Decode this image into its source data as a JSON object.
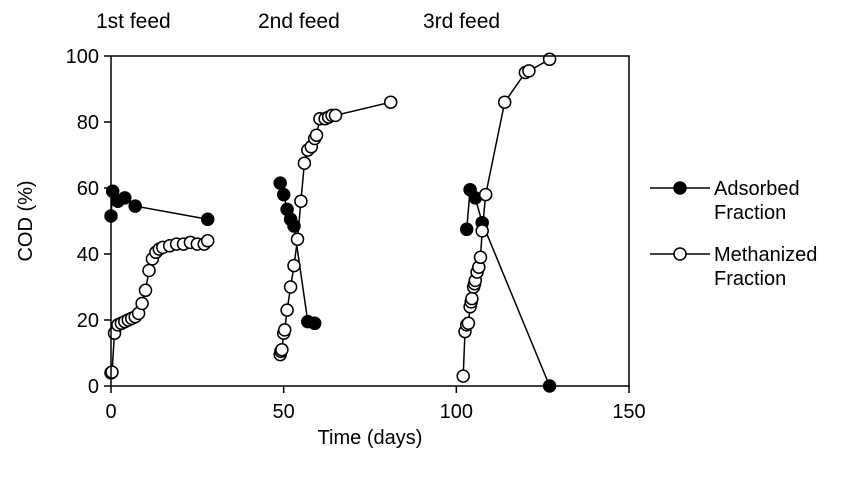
{
  "chart_data": {
    "type": "scatter",
    "xlabel": "Time (days)",
    "ylabel": "COD (%)",
    "xlim": [
      0,
      150
    ],
    "ylim": [
      0,
      100
    ],
    "x_ticks": [
      "0",
      "50",
      "100",
      "150"
    ],
    "y_ticks": [
      "0",
      "20",
      "40",
      "60",
      "80",
      "100"
    ],
    "grid": false,
    "legend_position": "right",
    "annotations": [
      "1st feed",
      "2nd feed",
      "3rd feed"
    ],
    "series": [
      {
        "name": "Adsorbed Fraction",
        "marker": "filled-circle",
        "segments": [
          [
            [
              0,
              51.5
            ],
            [
              0.5,
              59
            ],
            [
              2,
              56
            ],
            [
              4,
              57
            ],
            [
              7,
              54.5
            ],
            [
              28,
              50.5
            ]
          ],
          [
            [
              49,
              61.5
            ],
            [
              50,
              58
            ],
            [
              51,
              53.5
            ],
            [
              52,
              50.5
            ],
            [
              53,
              48.5
            ],
            [
              57,
              19.5
            ],
            [
              59,
              19
            ]
          ],
          [
            [
              103,
              47.5
            ],
            [
              104,
              59.5
            ],
            [
              105.5,
              57
            ],
            [
              107.5,
              49.5
            ],
            [
              127,
              0
            ]
          ]
        ]
      },
      {
        "name": "Methanized Fraction",
        "marker": "open-circle",
        "segments": [
          [
            [
              0,
              4
            ],
            [
              0.3,
              4.2
            ],
            [
              1,
              16
            ],
            [
              2,
              18.5
            ],
            [
              3,
              19
            ],
            [
              4,
              19.5
            ],
            [
              5,
              20
            ],
            [
              6,
              20.5
            ],
            [
              7,
              21
            ],
            [
              8,
              22
            ],
            [
              9,
              25
            ],
            [
              10,
              29
            ],
            [
              11,
              35
            ],
            [
              12,
              38.5
            ],
            [
              13,
              40.5
            ],
            [
              14,
              41.5
            ],
            [
              15,
              42
            ],
            [
              17,
              42.5
            ],
            [
              19,
              43
            ],
            [
              21,
              43
            ],
            [
              23,
              43.5
            ],
            [
              25,
              43
            ],
            [
              27,
              43
            ],
            [
              28,
              44
            ]
          ],
          [
            [
              49,
              9.5
            ],
            [
              49.2,
              10.5
            ],
            [
              49.5,
              11
            ],
            [
              50,
              16
            ],
            [
              50.3,
              17
            ],
            [
              51,
              23
            ],
            [
              52,
              30
            ],
            [
              53,
              36.5
            ],
            [
              54,
              44.5
            ],
            [
              55,
              56
            ],
            [
              56,
              67.5
            ],
            [
              57,
              71.5
            ],
            [
              58,
              72.5
            ],
            [
              59,
              75
            ],
            [
              59.5,
              76
            ],
            [
              60.5,
              81
            ],
            [
              62,
              81
            ],
            [
              63,
              81.5
            ],
            [
              64,
              82
            ],
            [
              65,
              82
            ],
            [
              81,
              86
            ]
          ],
          [
            [
              102,
              3
            ],
            [
              102.5,
              16.5
            ],
            [
              103,
              18.5
            ],
            [
              103.5,
              19
            ],
            [
              104,
              24
            ],
            [
              104.3,
              25.5
            ],
            [
              104.5,
              26.5
            ],
            [
              105,
              30
            ],
            [
              105.3,
              31
            ],
            [
              105.5,
              32
            ],
            [
              106,
              34.5
            ],
            [
              106.5,
              36
            ],
            [
              107,
              39
            ],
            [
              107.5,
              47
            ],
            [
              108.5,
              58
            ],
            [
              114,
              86
            ],
            [
              120,
              95
            ],
            [
              121,
              95.5
            ],
            [
              127,
              99
            ]
          ]
        ]
      }
    ]
  }
}
